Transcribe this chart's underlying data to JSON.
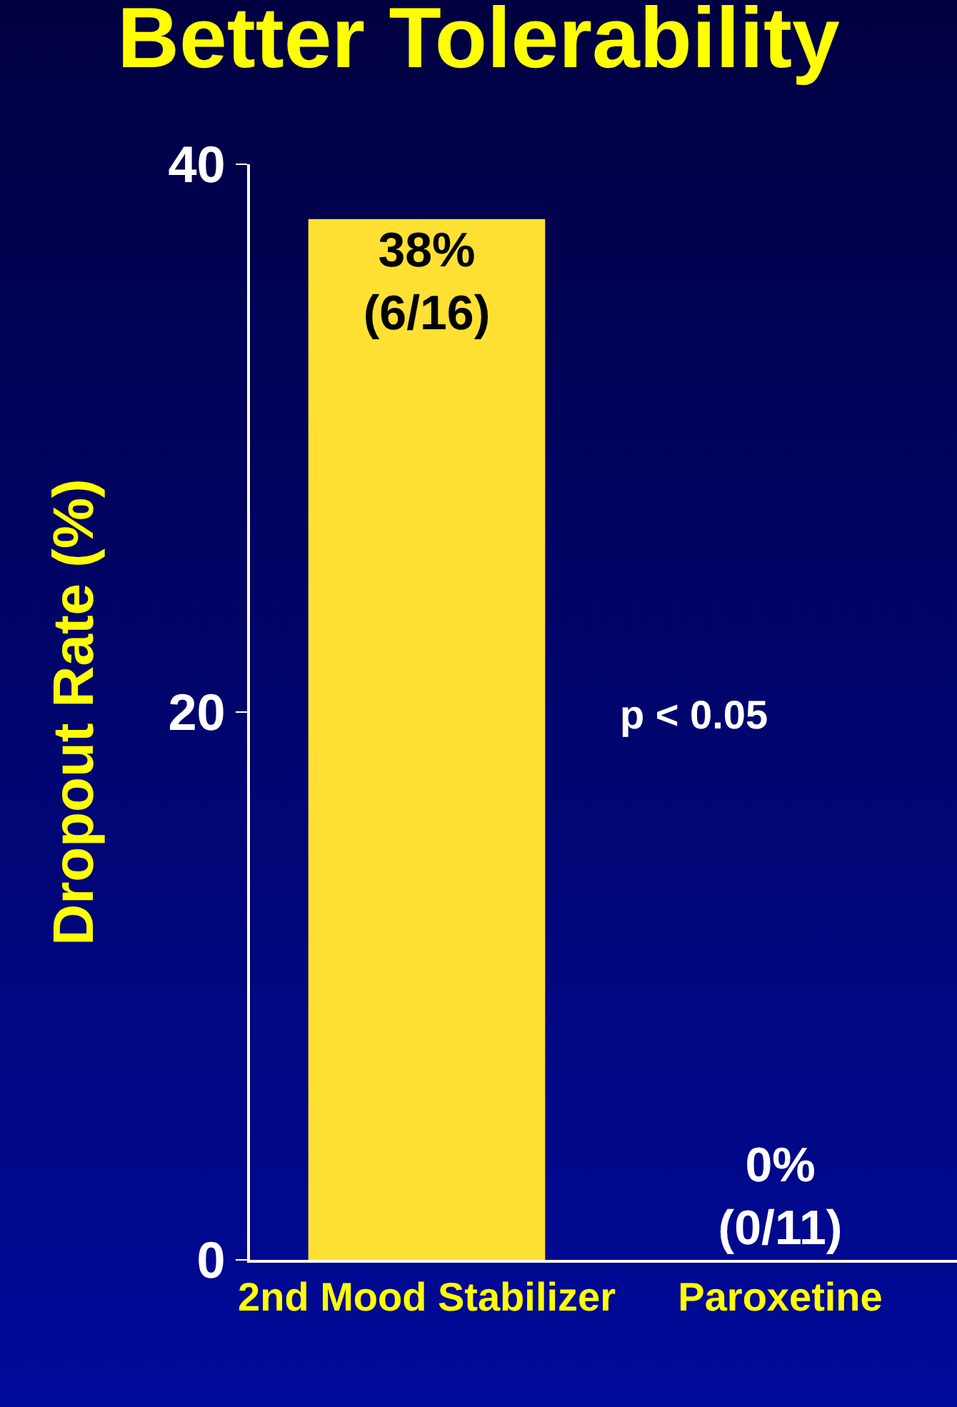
{
  "chart_data": {
    "type": "bar",
    "title": "Better Tolerability",
    "ylabel": "Dropout Rate (%)",
    "categories": [
      "2nd Mood Stabilizer",
      "Paroxetine"
    ],
    "values": [
      38,
      0
    ],
    "value_labels": [
      "38%\n(6/16)",
      "0%\n(0/11)"
    ],
    "color": "#ffe033",
    "ylim": [
      0,
      40
    ],
    "yticks": [
      0,
      20,
      40
    ],
    "annotations": [
      "p < 0.05"
    ],
    "grid": false,
    "legend": false
  }
}
